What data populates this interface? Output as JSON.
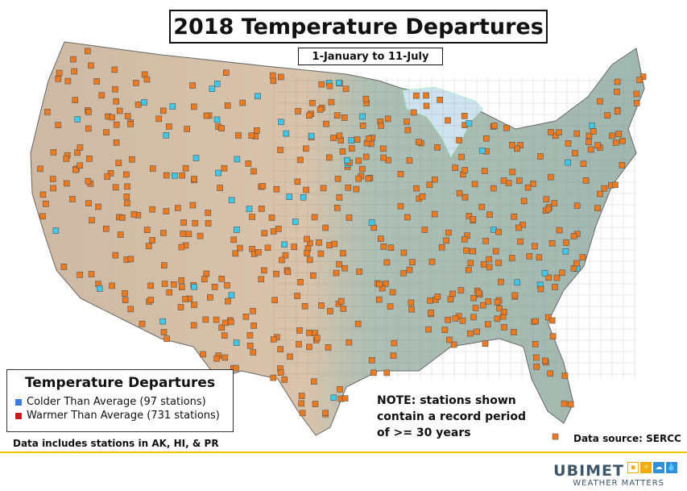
{
  "title": "2018 Temperature Departures",
  "subtitle": "1-January to 11-July",
  "legend": {
    "title": "Temperature Departures",
    "colder_label": "Colder Than Average (97 stations)",
    "warmer_label": "Warmer Than Average (731 stations)",
    "colder_color": "#3ec8ea",
    "warmer_color": "#f07a1e"
  },
  "data_note": "Data includes stations in AK, HI, & PR",
  "note_lines": [
    "NOTE: stations shown",
    "contain a record period",
    "of >= 30 years"
  ],
  "source": "Data source: SERCC",
  "brand": {
    "name": "UBIMET",
    "tagline": "WEATHER MATTERS"
  },
  "icons": [
    "map-us-icon",
    "sun-icon",
    "cloud-icon",
    "drop-icon"
  ]
}
